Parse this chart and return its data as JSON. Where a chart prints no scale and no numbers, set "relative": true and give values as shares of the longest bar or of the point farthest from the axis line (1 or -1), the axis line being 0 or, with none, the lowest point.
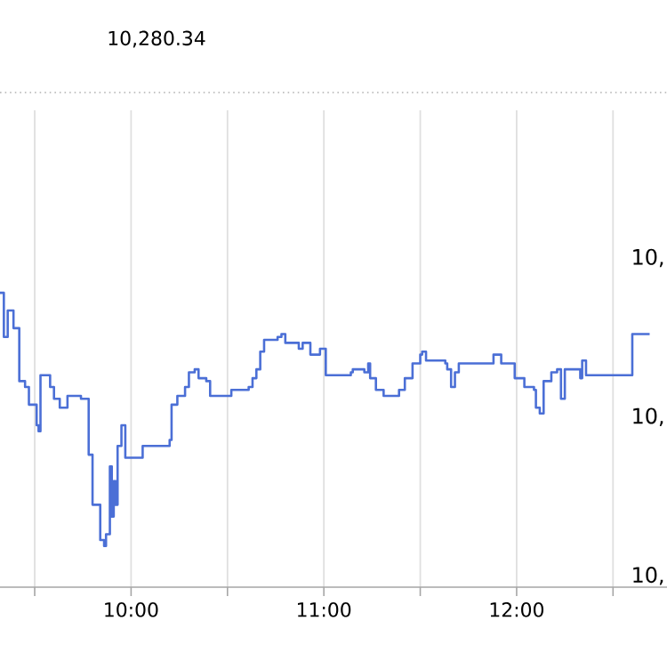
{
  "chart_data": {
    "type": "step",
    "title": "10,280.34",
    "relative": true,
    "grid": true,
    "marker": "none",
    "line_style": "solid",
    "xlim": [
      9.32,
      12.78
    ],
    "xticks": [
      {
        "value": 9.5,
        "label": null
      },
      {
        "value": 10,
        "label": "10:00"
      },
      {
        "value": 10.5,
        "label": null
      },
      {
        "value": 11,
        "label": "11:00"
      },
      {
        "value": 11.5,
        "label": null
      },
      {
        "value": 12,
        "label": "12:00"
      },
      {
        "value": 12.5,
        "label": null
      }
    ],
    "annotations": [
      "10,",
      "10,",
      "10,"
    ],
    "series": [
      {
        "color": "#4b6fd6",
        "x": [
          9.32,
          9.34,
          9.36,
          9.39,
          9.42,
          9.45,
          9.47,
          9.51,
          9.52,
          9.53,
          9.58,
          9.6,
          9.63,
          9.67,
          9.71,
          9.74,
          9.78,
          9.8,
          9.84,
          9.86,
          9.87,
          9.89,
          9.9,
          9.91,
          9.92,
          9.93,
          9.95,
          9.97,
          9.98,
          10.06,
          10.1,
          10.2,
          10.21,
          10.24,
          10.28,
          10.3,
          10.33,
          10.35,
          10.39,
          10.41,
          10.45,
          10.52,
          10.61,
          10.63,
          10.65,
          10.67,
          10.69,
          10.76,
          10.78,
          10.8,
          10.87,
          10.89,
          10.93,
          10.98,
          11.0,
          11.01,
          11.07,
          11.14,
          11.15,
          11.21,
          11.23,
          11.24,
          11.27,
          11.31,
          11.39,
          11.42,
          11.46,
          11.5,
          11.51,
          11.53,
          11.63,
          11.64,
          11.66,
          11.68,
          11.7,
          11.79,
          11.86,
          11.88,
          11.92,
          11.98,
          11.99,
          12.04,
          12.09,
          12.1,
          12.12,
          12.14,
          12.18,
          12.21,
          12.23,
          12.25,
          12.31,
          12.33,
          12.34,
          12.36,
          12.59,
          12.6,
          12.69
        ],
        "values": [
          1.0,
          0.85,
          0.94,
          0.88,
          0.7,
          0.68,
          0.62,
          0.55,
          0.53,
          0.72,
          0.68,
          0.64,
          0.61,
          0.65,
          0.65,
          0.64,
          0.45,
          0.28,
          0.16,
          0.14,
          0.18,
          0.41,
          0.24,
          0.36,
          0.28,
          0.48,
          0.55,
          0.44,
          0.44,
          0.48,
          0.48,
          0.5,
          0.62,
          0.65,
          0.68,
          0.73,
          0.74,
          0.71,
          0.7,
          0.65,
          0.65,
          0.67,
          0.68,
          0.71,
          0.74,
          0.8,
          0.84,
          0.85,
          0.86,
          0.83,
          0.81,
          0.83,
          0.79,
          0.81,
          0.81,
          0.72,
          0.72,
          0.73,
          0.74,
          0.73,
          0.76,
          0.71,
          0.67,
          0.65,
          0.67,
          0.71,
          0.76,
          0.79,
          0.8,
          0.77,
          0.76,
          0.74,
          0.68,
          0.73,
          0.76,
          0.76,
          0.76,
          0.79,
          0.76,
          0.76,
          0.71,
          0.68,
          0.67,
          0.61,
          0.59,
          0.7,
          0.73,
          0.74,
          0.64,
          0.74,
          0.74,
          0.71,
          0.77,
          0.72,
          0.72,
          0.86,
          0.86
        ]
      }
    ]
  }
}
